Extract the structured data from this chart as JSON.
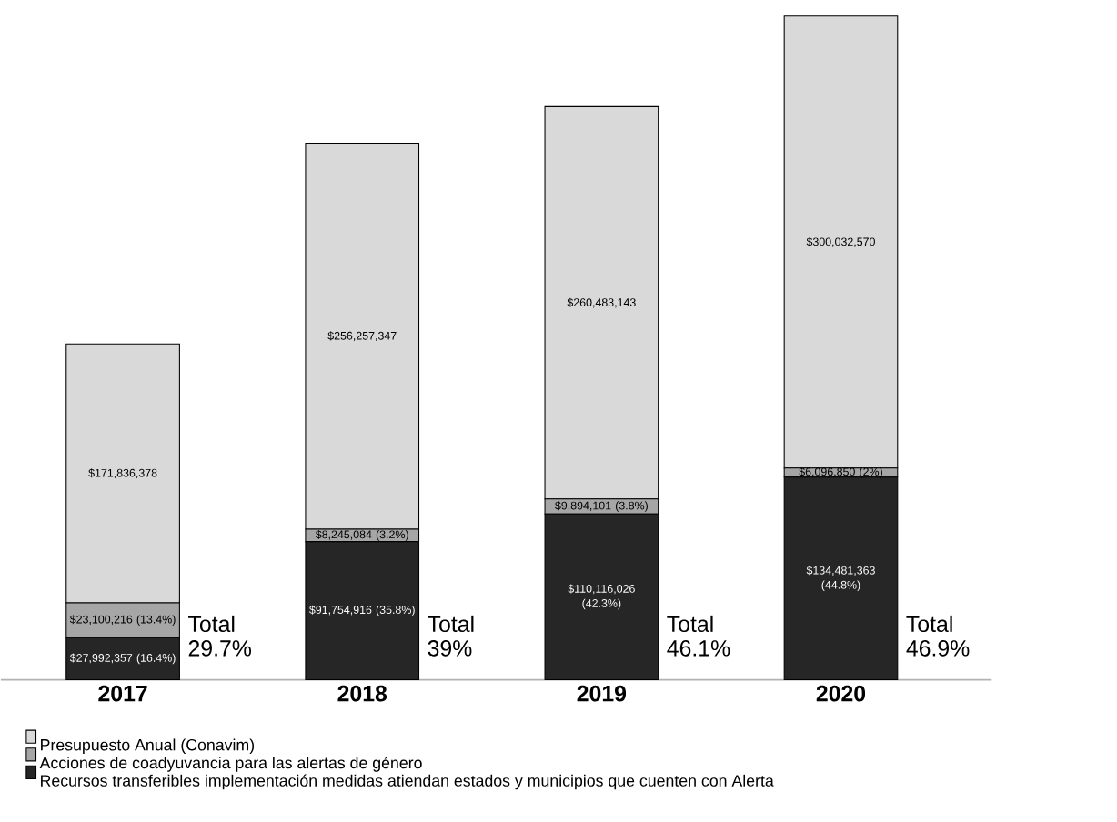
{
  "chart_data": {
    "type": "bar",
    "stacked": true,
    "categories": [
      "2017",
      "2018",
      "2019",
      "2020"
    ],
    "series": [
      {
        "name": "Recursos transferibles implementación medidas atiendan estados y municipios que cuenten con Alerta",
        "color": "#262626",
        "values": [
          27992357,
          91754916,
          110116026,
          134481363
        ],
        "value_labels": [
          "$27,992,357 (16.4%)",
          "$91,754,916 (35.8%)",
          "$110,116,026 (42.3%)",
          "$134,481,363 (44.8%)"
        ]
      },
      {
        "name": "Acciones de coadyuvancia para las alertas de género",
        "color": "#a6a6a6",
        "values": [
          23100216,
          8245084,
          9894101,
          6096850
        ],
        "value_labels": [
          "$23,100,216 (13.4%)",
          "$8,245,084 (3.2%)",
          "$9,894,101 (3.8%)",
          "$6,096,850 (2%)"
        ]
      },
      {
        "name": "Presupuesto Anual (Conavim)",
        "color": "#d9d9d9",
        "values": [
          171836378,
          256257347,
          260483143,
          300032570
        ],
        "value_labels": [
          "$171,836,378",
          "$256,257,347",
          "$260,483,143",
          "$300,032,570"
        ]
      }
    ],
    "annotations": [
      "Total 29.7%",
      "Total 39%",
      "Total 46.1%",
      "Total 46.9%"
    ],
    "legend": "bottom"
  }
}
